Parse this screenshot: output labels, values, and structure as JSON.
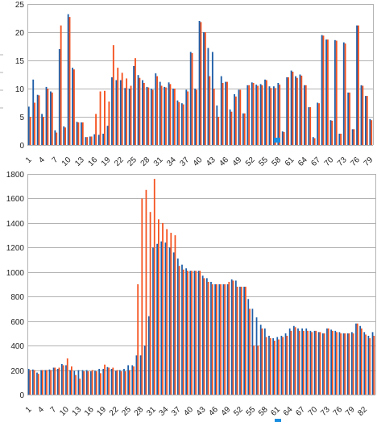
{
  "colors": {
    "series_a": "#1f5fa8",
    "series_b": "#f4511e",
    "marker": "#1a8ee0"
  },
  "chart_data": [
    {
      "type": "bar",
      "ylim": [
        0,
        25
      ],
      "yticks": [
        0,
        5,
        10,
        15,
        20,
        25
      ],
      "tick_every": 3,
      "grid": true,
      "legend": "bottom (marker only)",
      "series": [
        {
          "values": [
            6.8,
            11.6,
            8.9,
            5.5,
            10.3,
            9.5,
            2.6,
            17.0,
            3.3,
            23.2,
            13.7,
            4.1,
            4.0,
            1.4,
            1.5,
            1.9,
            1.8,
            2.0,
            3.4,
            12.0,
            11.5,
            11.5,
            10.1,
            10.0,
            14.0,
            12.4,
            11.5,
            10.3,
            10.0,
            12.7,
            11.2,
            10.3,
            11.1,
            10.0,
            7.9,
            7.4,
            9.8,
            16.5,
            10.0,
            22.0,
            20.0,
            17.2,
            16.5,
            7.0,
            12.2,
            11.2,
            6.3,
            9.0,
            9.8,
            5.6,
            10.6,
            11.1,
            10.7,
            10.8,
            11.6,
            10.4,
            10.4,
            11.0,
            2.4,
            12.0,
            13.2,
            12.2,
            12.5,
            10.6,
            6.7,
            1.4,
            7.5,
            19.5,
            18.7,
            4.4,
            18.6,
            2.0,
            18.2,
            9.3,
            2.8,
            21.2,
            10.6,
            8.7,
            4.6
          ]
        },
        {
          "values": [
            5.0,
            7.5,
            8.8,
            5.0,
            10.0,
            9.3,
            2.2,
            21.2,
            3.1,
            22.7,
            13.4,
            4.0,
            4.0,
            1.4,
            1.5,
            5.5,
            9.5,
            9.6,
            7.7,
            17.7,
            13.7,
            12.8,
            11.8,
            10.5,
            15.4,
            11.9,
            11.0,
            10.2,
            9.8,
            12.2,
            10.5,
            10.2,
            10.8,
            10.0,
            7.6,
            7.2,
            9.5,
            16.3,
            9.8,
            21.8,
            20.0,
            12.2,
            10.0,
            5.0,
            11.0,
            11.2,
            5.9,
            8.6,
            9.8,
            5.6,
            10.6,
            11.0,
            10.5,
            10.6,
            11.5,
            10.1,
            10.1,
            10.7,
            2.3,
            12.0,
            13.0,
            11.9,
            12.3,
            10.6,
            6.7,
            1.2,
            7.4,
            19.4,
            18.7,
            4.3,
            18.5,
            2.0,
            18.0,
            9.3,
            2.8,
            21.2,
            10.5,
            8.7,
            4.4
          ]
        }
      ]
    },
    {
      "type": "bar",
      "ylim": [
        0,
        1800
      ],
      "yticks": [
        0,
        200,
        400,
        600,
        800,
        1000,
        1200,
        1400,
        1600,
        1800
      ],
      "tick_every": 3,
      "grid": true,
      "legend": "bottom (marker only)",
      "series": [
        {
          "values": [
            210,
            205,
            180,
            200,
            200,
            205,
            220,
            210,
            250,
            240,
            200,
            195,
            200,
            200,
            200,
            190,
            195,
            210,
            210,
            225,
            210,
            195,
            200,
            210,
            240,
            240,
            320,
            320,
            400,
            640,
            1200,
            1230,
            1250,
            1240,
            1200,
            1160,
            1110,
            1060,
            1030,
            1010,
            1010,
            1010,
            970,
            950,
            920,
            900,
            900,
            900,
            900,
            940,
            930,
            880,
            880,
            780,
            700,
            630,
            570,
            540,
            480,
            460,
            470,
            480,
            500,
            540,
            560,
            540,
            540,
            540,
            520,
            520,
            510,
            500,
            540,
            530,
            520,
            510,
            500,
            500,
            510,
            580,
            560,
            510,
            480,
            510
          ]
        },
        {
          "values": [
            200,
            200,
            170,
            200,
            200,
            200,
            220,
            220,
            240,
            295,
            230,
            160,
            130,
            190,
            190,
            200,
            190,
            175,
            245,
            220,
            220,
            200,
            190,
            190,
            200,
            230,
            900,
            1600,
            1670,
            1490,
            1760,
            1430,
            1400,
            1350,
            1320,
            1300,
            1050,
            1020,
            1010,
            1010,
            1010,
            1010,
            950,
            920,
            900,
            900,
            900,
            900,
            920,
            930,
            880,
            880,
            880,
            700,
            400,
            400,
            540,
            470,
            460,
            440,
            450,
            470,
            480,
            520,
            550,
            520,
            520,
            520,
            510,
            520,
            510,
            500,
            540,
            520,
            510,
            500,
            500,
            500,
            500,
            580,
            540,
            490,
            460,
            480
          ]
        }
      ]
    }
  ]
}
